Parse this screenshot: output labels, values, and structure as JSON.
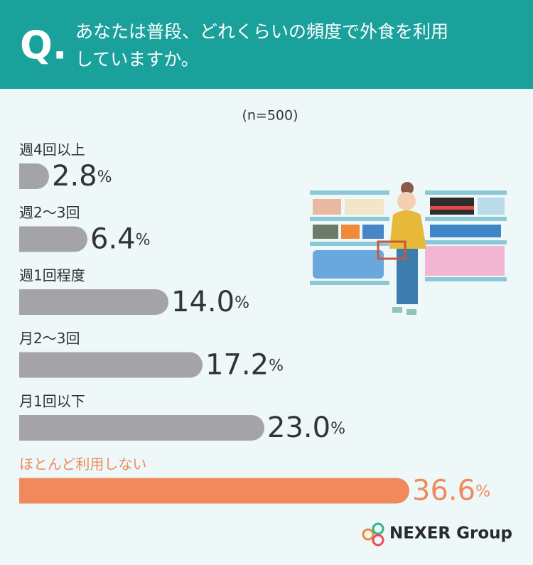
{
  "header": {
    "mark": "Q.",
    "question_lines": [
      "あなたは普段、どれくらいの頻度で外食を利用",
      "していますか。"
    ]
  },
  "chart_data": {
    "type": "bar",
    "note": "(n=500)",
    "categories": [
      "週4回以上",
      "週2～3回",
      "週1回程度",
      "月2～3回",
      "月1回以下",
      "ほとんど利用しない"
    ],
    "values": [
      2.8,
      6.4,
      14.0,
      17.2,
      23.0,
      36.6
    ],
    "value_labels": [
      "2.8%",
      "6.4%",
      "14.0%",
      "17.2%",
      "23.0%",
      "36.6%"
    ],
    "colors": [
      "#a4a4a7",
      "#a4a4a7",
      "#a4a4a7",
      "#a4a4a7",
      "#a4a4a7",
      "#f08a5d"
    ]
  },
  "footer": {
    "logo": "NEXER Group"
  }
}
